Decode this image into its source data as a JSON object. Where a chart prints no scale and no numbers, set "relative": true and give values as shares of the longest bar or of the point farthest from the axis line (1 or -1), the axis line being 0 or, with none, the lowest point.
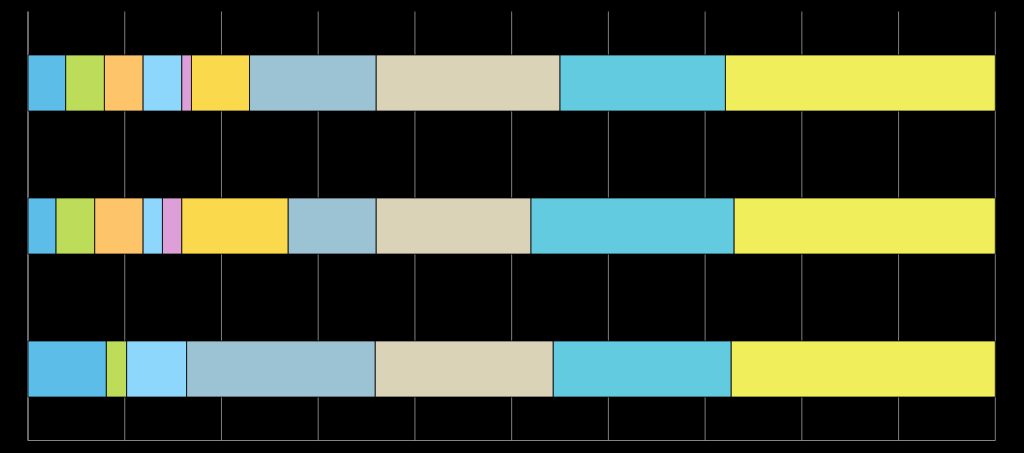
{
  "chart_data": {
    "type": "bar",
    "orientation": "horizontal",
    "stacked": true,
    "relative": true,
    "grid": "x",
    "categories": [
      null,
      null,
      null
    ],
    "series": [
      {
        "color": "#5bbde8",
        "values": [
          0.039,
          0.029,
          0.081
        ]
      },
      {
        "color": "#bddd5a",
        "values": [
          0.04,
          0.04,
          0.021
        ]
      },
      {
        "color": "#fdc46a",
        "values": [
          0.04,
          0.05,
          null
        ]
      },
      {
        "color": "#8dd7fc",
        "values": [
          0.04,
          0.02,
          0.062
        ]
      },
      {
        "color": "#dc9fd8",
        "values": [
          0.01,
          0.02,
          null
        ]
      },
      {
        "color": "#fbd94c",
        "values": [
          0.06,
          0.11,
          null
        ]
      },
      {
        "color": "#9cc3d3",
        "values": [
          0.131,
          0.091,
          0.195
        ]
      },
      {
        "color": "#dbd3b8",
        "values": [
          0.19,
          0.16,
          0.184
        ]
      },
      {
        "color": "#63cbe0",
        "values": [
          0.171,
          0.21,
          0.184
        ]
      },
      {
        "color": "#f0ee5a",
        "values": [
          0.279,
          0.27,
          0.273
        ]
      }
    ]
  }
}
